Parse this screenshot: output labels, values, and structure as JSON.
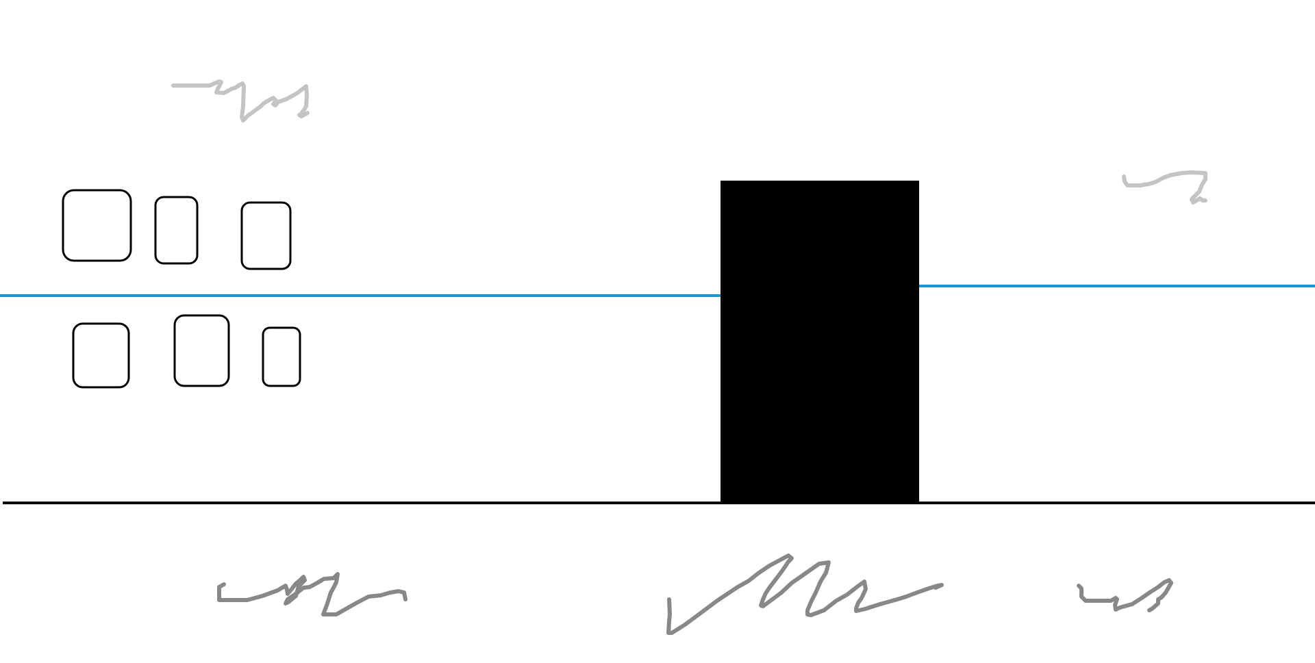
{
  "canvas": {
    "background": "#ffffff",
    "description_kind": "hand-drawn wireframe sketch with placeholder scribbles"
  },
  "colors": {
    "ink": "#000000",
    "accent_line": "#1a96d4",
    "scribble_dark": "#888888",
    "scribble_light": "#c4c4c4"
  },
  "elements": {
    "outlined_blocks": {
      "count": 6,
      "rows": 2,
      "per_row": 3
    },
    "solid_block": {
      "fill": "#000000"
    },
    "divider_lines": {
      "horizontal_accent_count": 2,
      "baseline_count": 1
    },
    "scribble_labels": {
      "light_count": 2,
      "dark_count": 3
    }
  }
}
